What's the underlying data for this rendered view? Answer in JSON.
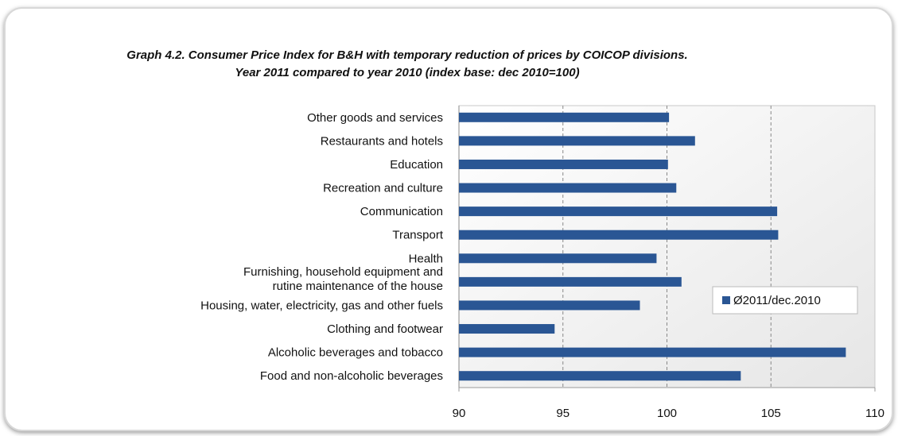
{
  "chart_data": {
    "type": "bar",
    "orientation": "horizontal",
    "title": "Graph 4.2. Consumer Price Index for B&H with temporary reduction of prices by COICOP divisions.",
    "subtitle": "Year 2011 compared to year 2010 (index base: dec 2010=100)",
    "categories": [
      "Other goods and services",
      "Restaurants and hotels",
      "Education",
      "Recreation and culture",
      "Communication",
      "Transport",
      "Health",
      "Furnishing, household equipment and\nrutine maintenance of the house",
      "Housing, water, electricity, gas and other fuels",
      "Clothing and footwear",
      "Alcoholic beverages and tobacco",
      "Food and non-alcoholic beverages"
    ],
    "series": [
      {
        "name": "Ø2011/dec.2010",
        "color": "#2a5694",
        "values": [
          100.1,
          101.35,
          100.05,
          100.45,
          105.3,
          105.35,
          99.5,
          100.7,
          98.7,
          94.6,
          108.6,
          103.55
        ]
      }
    ],
    "xlim": [
      90,
      110
    ],
    "xticks": [
      90,
      95,
      100,
      105,
      110
    ],
    "grid": true,
    "legend": "right"
  }
}
